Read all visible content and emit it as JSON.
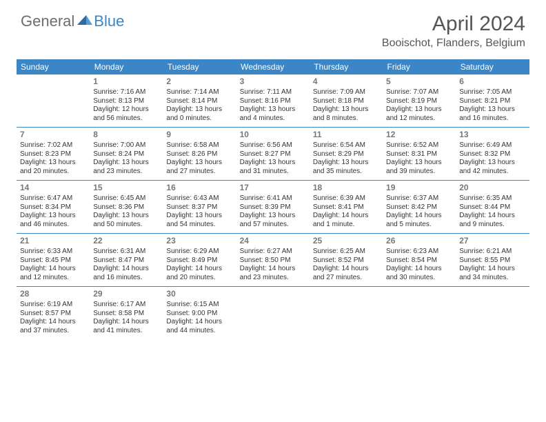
{
  "brand": {
    "part1": "General",
    "part2": "Blue"
  },
  "title": "April 2024",
  "location": "Booischot, Flanders, Belgium",
  "colors": {
    "accent": "#3b86c6",
    "header_text": "#555555",
    "logo_gray": "#6d6d6d",
    "cell_text": "#333333",
    "daynum": "#777777",
    "background": "#ffffff"
  },
  "dow": [
    "Sunday",
    "Monday",
    "Tuesday",
    "Wednesday",
    "Thursday",
    "Friday",
    "Saturday"
  ],
  "weeks": [
    [
      {
        "blank": true
      },
      {
        "n": "1",
        "sr": "7:16 AM",
        "ss": "8:13 PM",
        "dl": "12 hours and 56 minutes."
      },
      {
        "n": "2",
        "sr": "7:14 AM",
        "ss": "8:14 PM",
        "dl": "13 hours and 0 minutes."
      },
      {
        "n": "3",
        "sr": "7:11 AM",
        "ss": "8:16 PM",
        "dl": "13 hours and 4 minutes."
      },
      {
        "n": "4",
        "sr": "7:09 AM",
        "ss": "8:18 PM",
        "dl": "13 hours and 8 minutes."
      },
      {
        "n": "5",
        "sr": "7:07 AM",
        "ss": "8:19 PM",
        "dl": "13 hours and 12 minutes."
      },
      {
        "n": "6",
        "sr": "7:05 AM",
        "ss": "8:21 PM",
        "dl": "13 hours and 16 minutes."
      }
    ],
    [
      {
        "n": "7",
        "sr": "7:02 AM",
        "ss": "8:23 PM",
        "dl": "13 hours and 20 minutes."
      },
      {
        "n": "8",
        "sr": "7:00 AM",
        "ss": "8:24 PM",
        "dl": "13 hours and 23 minutes."
      },
      {
        "n": "9",
        "sr": "6:58 AM",
        "ss": "8:26 PM",
        "dl": "13 hours and 27 minutes."
      },
      {
        "n": "10",
        "sr": "6:56 AM",
        "ss": "8:27 PM",
        "dl": "13 hours and 31 minutes."
      },
      {
        "n": "11",
        "sr": "6:54 AM",
        "ss": "8:29 PM",
        "dl": "13 hours and 35 minutes."
      },
      {
        "n": "12",
        "sr": "6:52 AM",
        "ss": "8:31 PM",
        "dl": "13 hours and 39 minutes."
      },
      {
        "n": "13",
        "sr": "6:49 AM",
        "ss": "8:32 PM",
        "dl": "13 hours and 42 minutes."
      }
    ],
    [
      {
        "n": "14",
        "sr": "6:47 AM",
        "ss": "8:34 PM",
        "dl": "13 hours and 46 minutes."
      },
      {
        "n": "15",
        "sr": "6:45 AM",
        "ss": "8:36 PM",
        "dl": "13 hours and 50 minutes."
      },
      {
        "n": "16",
        "sr": "6:43 AM",
        "ss": "8:37 PM",
        "dl": "13 hours and 54 minutes."
      },
      {
        "n": "17",
        "sr": "6:41 AM",
        "ss": "8:39 PM",
        "dl": "13 hours and 57 minutes."
      },
      {
        "n": "18",
        "sr": "6:39 AM",
        "ss": "8:41 PM",
        "dl": "14 hours and 1 minute."
      },
      {
        "n": "19",
        "sr": "6:37 AM",
        "ss": "8:42 PM",
        "dl": "14 hours and 5 minutes."
      },
      {
        "n": "20",
        "sr": "6:35 AM",
        "ss": "8:44 PM",
        "dl": "14 hours and 9 minutes."
      }
    ],
    [
      {
        "n": "21",
        "sr": "6:33 AM",
        "ss": "8:45 PM",
        "dl": "14 hours and 12 minutes."
      },
      {
        "n": "22",
        "sr": "6:31 AM",
        "ss": "8:47 PM",
        "dl": "14 hours and 16 minutes."
      },
      {
        "n": "23",
        "sr": "6:29 AM",
        "ss": "8:49 PM",
        "dl": "14 hours and 20 minutes."
      },
      {
        "n": "24",
        "sr": "6:27 AM",
        "ss": "8:50 PM",
        "dl": "14 hours and 23 minutes."
      },
      {
        "n": "25",
        "sr": "6:25 AM",
        "ss": "8:52 PM",
        "dl": "14 hours and 27 minutes."
      },
      {
        "n": "26",
        "sr": "6:23 AM",
        "ss": "8:54 PM",
        "dl": "14 hours and 30 minutes."
      },
      {
        "n": "27",
        "sr": "6:21 AM",
        "ss": "8:55 PM",
        "dl": "14 hours and 34 minutes."
      }
    ],
    [
      {
        "n": "28",
        "sr": "6:19 AM",
        "ss": "8:57 PM",
        "dl": "14 hours and 37 minutes."
      },
      {
        "n": "29",
        "sr": "6:17 AM",
        "ss": "8:58 PM",
        "dl": "14 hours and 41 minutes."
      },
      {
        "n": "30",
        "sr": "6:15 AM",
        "ss": "9:00 PM",
        "dl": "14 hours and 44 minutes."
      },
      {
        "blank": true
      },
      {
        "blank": true
      },
      {
        "blank": true
      },
      {
        "blank": true
      }
    ]
  ],
  "labels": {
    "sunrise": "Sunrise: ",
    "sunset": "Sunset: ",
    "daylight": "Daylight: "
  }
}
